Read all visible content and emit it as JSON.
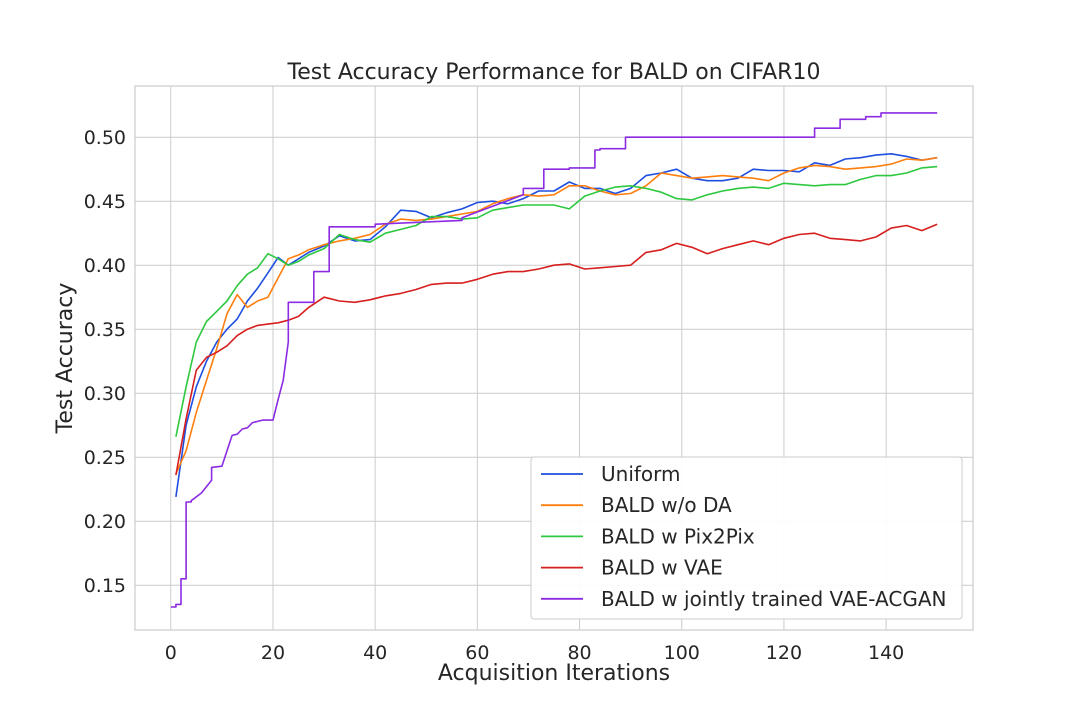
{
  "chart_data": {
    "type": "line",
    "title": "Test Accuracy Performance for BALD on CIFAR10",
    "xlabel": "Acquisition Iterations",
    "ylabel": "Test Accuracy",
    "xlim": [
      -7,
      157
    ],
    "ylim": [
      0.115,
      0.54
    ],
    "xticks": [
      0,
      20,
      40,
      60,
      80,
      100,
      120,
      140
    ],
    "yticks": [
      0.15,
      0.2,
      0.25,
      0.3,
      0.35,
      0.4,
      0.45,
      0.5
    ],
    "grid": true,
    "legend_position": "lower-right",
    "series": [
      {
        "name": "Uniform",
        "color": "#1f4fe0",
        "x": [
          1,
          3,
          5,
          7,
          9,
          11,
          13,
          15,
          17,
          19,
          21,
          23,
          25,
          27,
          30,
          33,
          36,
          39,
          42,
          45,
          48,
          51,
          54,
          57,
          60,
          63,
          66,
          69,
          72,
          75,
          78,
          81,
          84,
          87,
          90,
          93,
          96,
          99,
          102,
          105,
          108,
          111,
          114,
          117,
          120,
          123,
          126,
          129,
          132,
          135,
          138,
          141,
          144,
          147,
          150
        ],
        "y": [
          0.219,
          0.275,
          0.305,
          0.325,
          0.34,
          0.35,
          0.358,
          0.372,
          0.382,
          0.394,
          0.406,
          0.4,
          0.405,
          0.41,
          0.415,
          0.423,
          0.419,
          0.42,
          0.43,
          0.443,
          0.442,
          0.437,
          0.441,
          0.444,
          0.449,
          0.45,
          0.448,
          0.452,
          0.458,
          0.458,
          0.465,
          0.46,
          0.46,
          0.456,
          0.46,
          0.47,
          0.472,
          0.475,
          0.468,
          0.466,
          0.466,
          0.468,
          0.475,
          0.474,
          0.474,
          0.473,
          0.48,
          0.478,
          0.483,
          0.484,
          0.486,
          0.487,
          0.485,
          0.482,
          0.484
        ]
      },
      {
        "name": "BALD w/o DA",
        "color": "#ff7f0e",
        "x": [
          1,
          3,
          5,
          7,
          9,
          11,
          13,
          15,
          17,
          19,
          21,
          23,
          25,
          27,
          30,
          33,
          36,
          39,
          42,
          45,
          48,
          51,
          54,
          57,
          60,
          63,
          66,
          69,
          72,
          75,
          78,
          81,
          84,
          87,
          90,
          93,
          96,
          99,
          102,
          105,
          108,
          111,
          114,
          117,
          120,
          123,
          126,
          129,
          132,
          135,
          138,
          141,
          144,
          147,
          150
        ],
        "y": [
          0.237,
          0.255,
          0.285,
          0.31,
          0.335,
          0.362,
          0.377,
          0.367,
          0.372,
          0.375,
          0.39,
          0.405,
          0.408,
          0.412,
          0.416,
          0.419,
          0.421,
          0.424,
          0.432,
          0.436,
          0.435,
          0.436,
          0.438,
          0.44,
          0.442,
          0.448,
          0.452,
          0.455,
          0.454,
          0.455,
          0.462,
          0.462,
          0.458,
          0.455,
          0.456,
          0.462,
          0.472,
          0.47,
          0.468,
          0.469,
          0.47,
          0.469,
          0.468,
          0.466,
          0.472,
          0.476,
          0.478,
          0.477,
          0.475,
          0.476,
          0.477,
          0.479,
          0.483,
          0.482,
          0.484
        ]
      },
      {
        "name": "BALD w Pix2Pix",
        "color": "#2ec840",
        "x": [
          1,
          3,
          5,
          7,
          9,
          11,
          13,
          15,
          17,
          19,
          21,
          23,
          25,
          27,
          30,
          33,
          36,
          39,
          42,
          45,
          48,
          51,
          54,
          57,
          60,
          63,
          66,
          69,
          72,
          75,
          78,
          81,
          84,
          87,
          90,
          93,
          96,
          99,
          102,
          105,
          108,
          111,
          114,
          117,
          120,
          123,
          126,
          129,
          132,
          135,
          138,
          141,
          144,
          147,
          150
        ],
        "y": [
          0.266,
          0.305,
          0.34,
          0.356,
          0.364,
          0.372,
          0.384,
          0.393,
          0.398,
          0.409,
          0.405,
          0.4,
          0.403,
          0.408,
          0.413,
          0.424,
          0.42,
          0.418,
          0.425,
          0.428,
          0.431,
          0.438,
          0.438,
          0.436,
          0.437,
          0.443,
          0.445,
          0.447,
          0.447,
          0.447,
          0.444,
          0.454,
          0.458,
          0.461,
          0.462,
          0.46,
          0.457,
          0.452,
          0.451,
          0.455,
          0.458,
          0.46,
          0.461,
          0.46,
          0.464,
          0.463,
          0.462,
          0.463,
          0.463,
          0.467,
          0.47,
          0.47,
          0.472,
          0.476,
          0.477
        ]
      },
      {
        "name": "BALD w VAE",
        "color": "#d61f1f",
        "x": [
          1,
          3,
          5,
          7,
          9,
          11,
          13,
          15,
          17,
          19,
          21,
          23,
          25,
          27,
          30,
          33,
          36,
          39,
          42,
          45,
          48,
          51,
          54,
          57,
          60,
          63,
          66,
          69,
          72,
          75,
          78,
          81,
          84,
          87,
          90,
          93,
          96,
          99,
          102,
          105,
          108,
          111,
          114,
          117,
          120,
          123,
          126,
          129,
          132,
          135,
          138,
          141,
          144,
          147,
          150
        ],
        "y": [
          0.236,
          0.28,
          0.318,
          0.328,
          0.332,
          0.337,
          0.345,
          0.35,
          0.353,
          0.354,
          0.355,
          0.357,
          0.36,
          0.367,
          0.375,
          0.372,
          0.371,
          0.373,
          0.376,
          0.378,
          0.381,
          0.385,
          0.386,
          0.386,
          0.389,
          0.393,
          0.395,
          0.395,
          0.397,
          0.4,
          0.401,
          0.397,
          0.398,
          0.399,
          0.4,
          0.41,
          0.412,
          0.417,
          0.414,
          0.409,
          0.413,
          0.416,
          0.419,
          0.416,
          0.421,
          0.424,
          0.425,
          0.421,
          0.42,
          0.419,
          0.422,
          0.429,
          0.431,
          0.427,
          0.432
        ]
      },
      {
        "name": "BALD w jointly trained VAE-ACGAN",
        "color": "#8b2be2",
        "x": [
          0,
          1,
          1,
          2,
          2,
          3,
          3,
          4,
          4,
          6,
          8,
          8,
          10,
          11,
          12,
          13,
          14,
          15,
          16,
          17,
          18,
          20,
          21,
          22,
          23,
          23,
          28,
          28,
          31,
          31,
          40,
          40,
          57,
          57,
          69,
          69,
          73,
          73,
          78,
          78,
          83,
          83,
          84,
          84,
          89,
          89,
          126,
          126,
          131,
          131,
          136,
          136,
          139,
          139,
          150
        ],
        "y": [
          0.133,
          0.133,
          0.135,
          0.135,
          0.155,
          0.155,
          0.215,
          0.215,
          0.216,
          0.222,
          0.232,
          0.242,
          0.243,
          0.255,
          0.267,
          0.268,
          0.272,
          0.273,
          0.277,
          0.278,
          0.279,
          0.279,
          0.295,
          0.31,
          0.34,
          0.371,
          0.371,
          0.395,
          0.395,
          0.43,
          0.43,
          0.432,
          0.435,
          0.437,
          0.455,
          0.46,
          0.46,
          0.475,
          0.475,
          0.476,
          0.476,
          0.49,
          0.49,
          0.491,
          0.491,
          0.5,
          0.5,
          0.507,
          0.507,
          0.514,
          0.514,
          0.516,
          0.516,
          0.519,
          0.519
        ]
      }
    ]
  }
}
